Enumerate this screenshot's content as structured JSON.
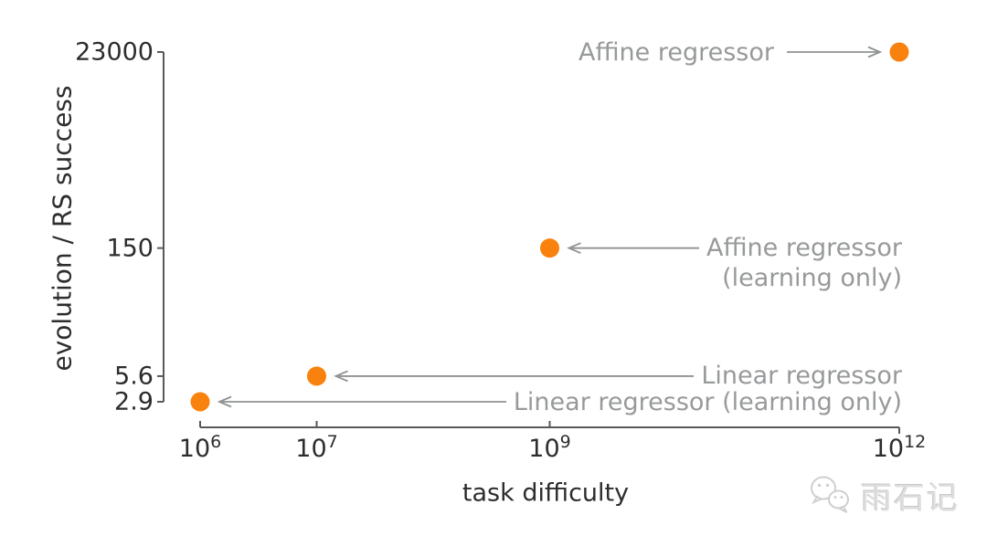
{
  "watermark": {
    "text": "雨石记",
    "logo": "wechat-chat-bubbles-icon"
  },
  "chart_data": {
    "type": "scatter",
    "title": "",
    "xlabel": "task difficulty",
    "ylabel": "evolution / RS success",
    "x_scale": "log",
    "y_scale": "log",
    "x_range": [
      1000000,
      1000000000000
    ],
    "y_range": [
      2.9,
      23000
    ],
    "grid": false,
    "legend": "none (direct point annotations with arrows)",
    "marker_color": "#f9820e",
    "annotation_color": "#97999b",
    "axis_color": "#59595b",
    "x_ticks": [
      {
        "base": "10",
        "exp": "6",
        "value": 1000000
      },
      {
        "base": "10",
        "exp": "7",
        "value": 10000000
      },
      {
        "base": "10",
        "exp": "9",
        "value": 1000000000
      },
      {
        "base": "10",
        "exp": "12",
        "value": 1000000000000
      }
    ],
    "y_ticks": [
      {
        "label": "23000",
        "value": 23000
      },
      {
        "label": "150",
        "value": 150
      },
      {
        "label": "5.6",
        "value": 5.6
      },
      {
        "label": "2.9",
        "value": 2.9
      }
    ],
    "points": [
      {
        "label": "Linear regressor (learning only)",
        "x": 1000000,
        "y": 2.9
      },
      {
        "label": "Linear regressor",
        "x": 10000000,
        "y": 5.6
      },
      {
        "label": "Affine regressor (learning only)",
        "x": 1000000000,
        "y": 150
      },
      {
        "label": "Affine regressor",
        "x": 1000000000000,
        "y": 23000
      }
    ],
    "annotations": [
      {
        "lines": [
          "Affine regressor"
        ],
        "point": 3,
        "side": "left"
      },
      {
        "lines": [
          "Affine regressor",
          "(learning only)"
        ],
        "point": 2,
        "side": "right"
      },
      {
        "lines": [
          "Linear regressor"
        ],
        "point": 1,
        "side": "right"
      },
      {
        "lines": [
          "Linear regressor (learning only)"
        ],
        "point": 0,
        "side": "right"
      }
    ]
  }
}
